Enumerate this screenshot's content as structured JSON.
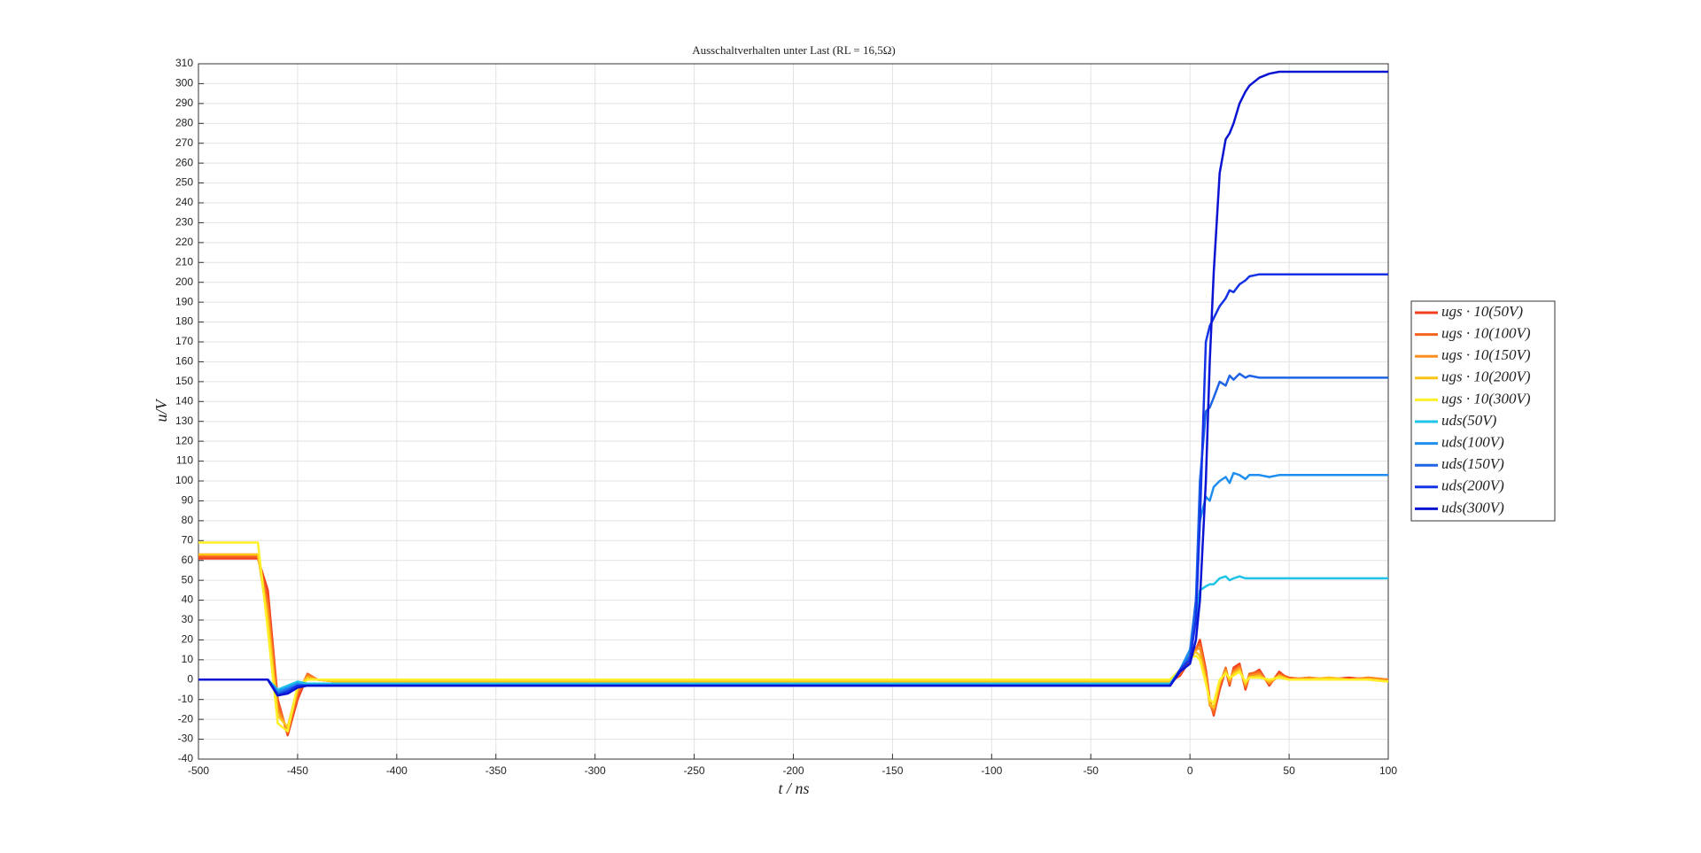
{
  "chart_data": {
    "type": "line",
    "title": "Ausschaltverhalten unter Last (RL = 16,5Ω)",
    "x_label": "t / ns",
    "y_label": "u/V",
    "x": [
      -500,
      -480,
      -470,
      -465,
      -460,
      -455,
      -450,
      -445,
      -440,
      -430,
      -400,
      -300,
      -200,
      -100,
      -50,
      -10,
      -5,
      0,
      3,
      5,
      8,
      10,
      12,
      15,
      18,
      20,
      22,
      25,
      28,
      30,
      35,
      40,
      45,
      50,
      60,
      70,
      80,
      90,
      100
    ],
    "series": [
      {
        "name": "ugs · 10(50V)",
        "color": "#f0401e",
        "values": [
          61,
          61,
          61,
          45,
          -10,
          -28,
          -10,
          2,
          0,
          -1,
          -1,
          -1,
          -1,
          -1,
          -1,
          -1,
          2,
          10,
          15,
          20,
          5,
          -10,
          -18,
          -5,
          5,
          -3,
          6,
          8,
          -5,
          2,
          5,
          -3,
          4,
          0,
          1,
          0,
          1,
          0,
          0
        ]
      },
      {
        "name": "ugs · 10(100V)",
        "color": "#f86420",
        "values": [
          62,
          62,
          62,
          40,
          -12,
          -27,
          -8,
          3,
          0,
          -1,
          -1,
          -1,
          -1,
          -1,
          -1,
          -1,
          3,
          12,
          16,
          18,
          3,
          -12,
          -17,
          -3,
          6,
          -2,
          5,
          7,
          -4,
          3,
          4,
          -2,
          3,
          1,
          0,
          1,
          0,
          1,
          0
        ]
      },
      {
        "name": "ugs · 10(150V)",
        "color": "#fb9020",
        "values": [
          63,
          63,
          63,
          35,
          -15,
          -25,
          -6,
          2,
          0,
          -1,
          -1,
          -1,
          -1,
          -1,
          -1,
          -1,
          4,
          13,
          15,
          16,
          2,
          -13,
          -15,
          -2,
          5,
          -1,
          4,
          6,
          -3,
          2,
          3,
          -2,
          2,
          0,
          1,
          0,
          0,
          1,
          0
        ]
      },
      {
        "name": "ugs · 10(200V)",
        "color": "#fdc31a",
        "values": [
          63,
          63,
          63,
          30,
          -18,
          -24,
          -4,
          1,
          0,
          -1,
          -1,
          -1,
          -1,
          -1,
          -1,
          -1,
          4,
          12,
          14,
          12,
          0,
          -12,
          -14,
          -1,
          4,
          0,
          3,
          5,
          -2,
          1,
          2,
          -1,
          2,
          0,
          0,
          1,
          0,
          0,
          -1
        ]
      },
      {
        "name": "ugs · 10(300V)",
        "color": "#ffef28",
        "values": [
          69,
          69,
          69,
          25,
          -22,
          -26,
          -3,
          0,
          0,
          0,
          0,
          0,
          0,
          0,
          0,
          0,
          5,
          11,
          12,
          10,
          -2,
          -10,
          -12,
          0,
          3,
          1,
          2,
          4,
          -1,
          1,
          1,
          0,
          1,
          0,
          0,
          0,
          0,
          0,
          -1
        ]
      },
      {
        "name": "uds(50V)",
        "color": "#1ec3e8",
        "values": [
          0,
          0,
          0,
          0,
          -5,
          -3,
          -1,
          -2,
          -2,
          -2,
          -2,
          -2,
          -2,
          -2,
          -2,
          -2,
          5,
          15,
          30,
          45,
          47,
          48,
          48,
          51,
          52,
          50,
          51,
          52,
          51,
          51,
          51,
          51,
          51,
          51,
          51,
          51,
          51,
          51,
          51
        ]
      },
      {
        "name": "uds(100V)",
        "color": "#1e8ff0",
        "values": [
          0,
          0,
          0,
          0,
          -6,
          -4,
          -2,
          -3,
          -3,
          -3,
          -3,
          -3,
          -3,
          -3,
          -3,
          -3,
          5,
          15,
          40,
          80,
          92,
          90,
          97,
          100,
          102,
          99,
          104,
          103,
          101,
          103,
          103,
          102,
          103,
          103,
          103,
          103,
          103,
          103,
          103
        ]
      },
      {
        "name": "uds(150V)",
        "color": "#1e64e6",
        "values": [
          0,
          0,
          0,
          0,
          -7,
          -5,
          -3,
          -3,
          -3,
          -3,
          -3,
          -3,
          -3,
          -3,
          -3,
          -3,
          5,
          12,
          40,
          100,
          135,
          137,
          142,
          150,
          148,
          153,
          151,
          154,
          152,
          153,
          152,
          152,
          152,
          152,
          152,
          152,
          152,
          152,
          152
        ]
      },
      {
        "name": "uds(200V)",
        "color": "#1432e6",
        "values": [
          0,
          0,
          0,
          0,
          -8,
          -6,
          -3,
          -3,
          -3,
          -3,
          -3,
          -3,
          -3,
          -3,
          -3,
          -3,
          5,
          10,
          30,
          80,
          170,
          178,
          182,
          188,
          192,
          196,
          195,
          199,
          201,
          203,
          204,
          204,
          204,
          204,
          204,
          204,
          204,
          204,
          204
        ]
      },
      {
        "name": "uds(300V)",
        "color": "#0a14d2",
        "values": [
          0,
          0,
          0,
          0,
          -8,
          -7,
          -4,
          -3,
          -3,
          -3,
          -3,
          -3,
          -3,
          -3,
          -3,
          -3,
          4,
          8,
          20,
          40,
          100,
          160,
          205,
          255,
          272,
          275,
          280,
          290,
          296,
          299,
          303,
          305,
          306,
          306,
          306,
          306,
          306,
          306,
          306
        ]
      }
    ],
    "xlim": [
      -500,
      100
    ],
    "xticks": [
      -500,
      -450,
      -400,
      -350,
      -300,
      -250,
      -200,
      -150,
      -100,
      -50,
      0,
      50,
      100
    ],
    "ylim": [
      -40,
      310
    ],
    "yticks": [
      -40,
      -30,
      -20,
      -10,
      0,
      10,
      20,
      30,
      40,
      50,
      60,
      70,
      80,
      90,
      100,
      110,
      120,
      130,
      140,
      150,
      160,
      170,
      180,
      190,
      200,
      210,
      220,
      230,
      240,
      250,
      260,
      270,
      280,
      290,
      300,
      310
    ],
    "grid": true,
    "legend": "right"
  }
}
